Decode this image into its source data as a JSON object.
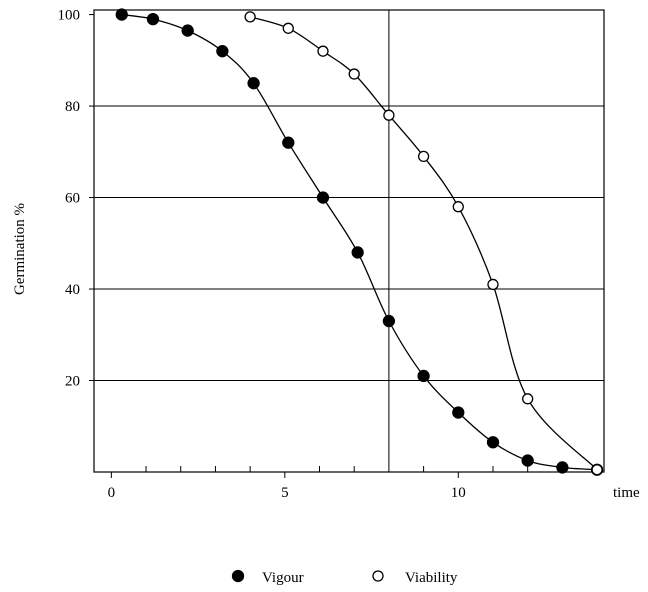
{
  "chart_data": {
    "type": "scatter",
    "xlabel": "time",
    "ylabel": "Germination %",
    "xlim": [
      -0.5,
      14.2
    ],
    "ylim": [
      0,
      101
    ],
    "x_ticks": [
      0,
      5,
      10
    ],
    "x_tick_labels": [
      "0",
      "5",
      "10"
    ],
    "y_ticks": [
      20,
      40,
      60,
      80,
      100
    ],
    "y_tick_labels": [
      "20",
      "40",
      "60",
      "80",
      "100"
    ],
    "grid_y": [
      20,
      40,
      60,
      80
    ],
    "grid_x": [
      8
    ],
    "minor_x_ticks": [
      1,
      2,
      3,
      4,
      6,
      7,
      9,
      11,
      12,
      13
    ],
    "legend_position": "bottom-center",
    "series": [
      {
        "name": "Vigour",
        "marker": "filled-circle",
        "x": [
          0.3,
          1.2,
          2.2,
          3.2,
          4.1,
          5.1,
          6.1,
          7.1,
          8.0,
          9.0,
          10.0,
          11.0,
          12.0,
          13.0,
          14.0
        ],
        "y": [
          100,
          99,
          96.5,
          92,
          85,
          72,
          60,
          48,
          33,
          21,
          13,
          6.5,
          2.5,
          1,
          0.5
        ]
      },
      {
        "name": "Viability",
        "marker": "open-circle",
        "x": [
          4.0,
          5.1,
          6.1,
          7.0,
          8.0,
          9.0,
          10.0,
          11.0,
          12.0,
          14.0
        ],
        "y": [
          99.5,
          97,
          92,
          87,
          78,
          69,
          58,
          41,
          16,
          0.5
        ]
      }
    ],
    "colors": {
      "ink": "#000000",
      "background": "#ffffff"
    }
  }
}
